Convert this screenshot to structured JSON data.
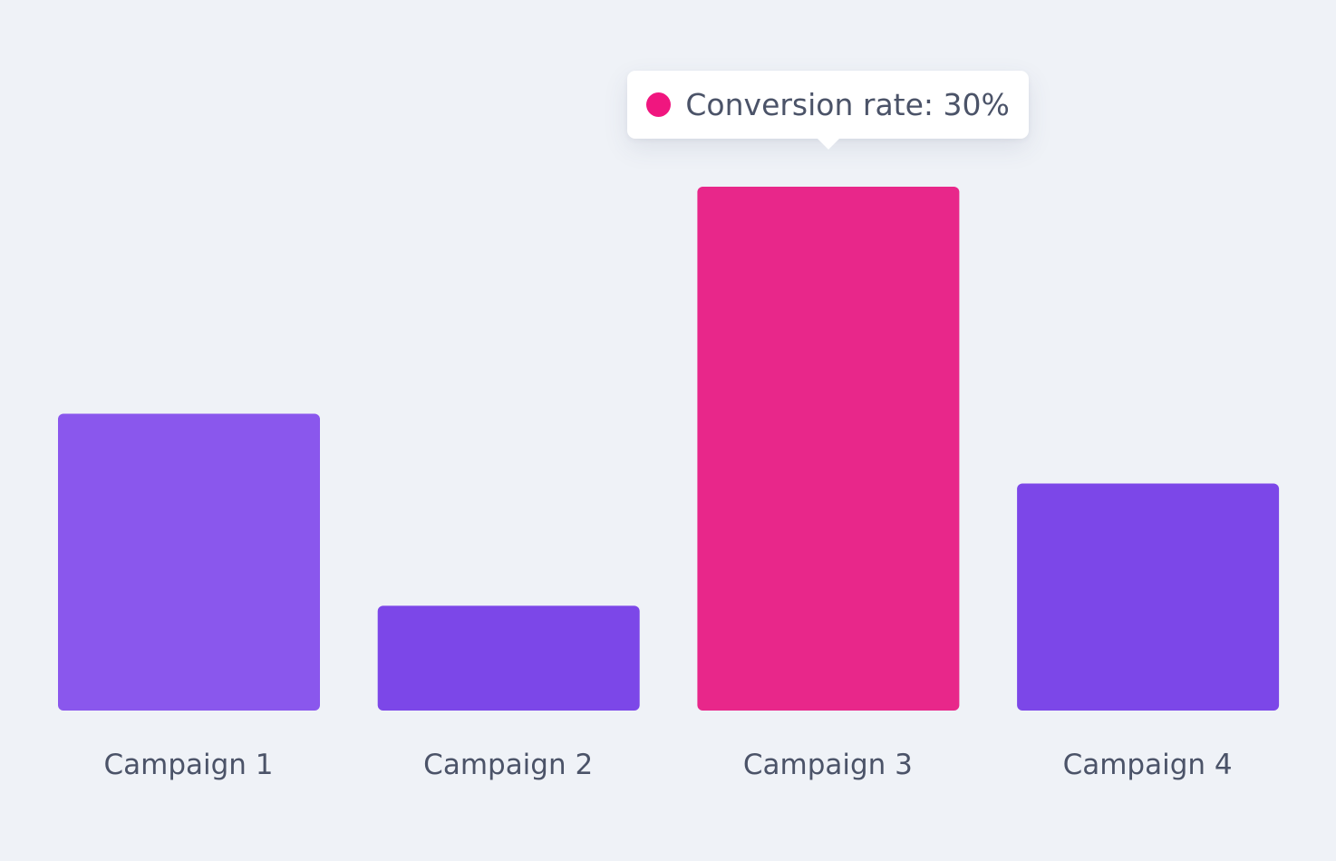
{
  "chart_data": {
    "type": "bar",
    "title": "",
    "xlabel": "",
    "ylabel": "",
    "categories": [
      "Campaign 1",
      "Campaign 2",
      "Campaign 3",
      "Campaign 4"
    ],
    "series": [
      {
        "name": "Conversion rate",
        "values": [
          17,
          6,
          30,
          13
        ]
      }
    ],
    "ylim": [
      0,
      30
    ],
    "grid": false,
    "bar_colors": [
      "#8a57ed",
      "#7c47e8",
      "#e8278a",
      "#7c47e8"
    ],
    "highlighted_index": 2,
    "tooltip": {
      "text": "Conversion rate: 30%",
      "dot_color": "#f0167f"
    }
  }
}
